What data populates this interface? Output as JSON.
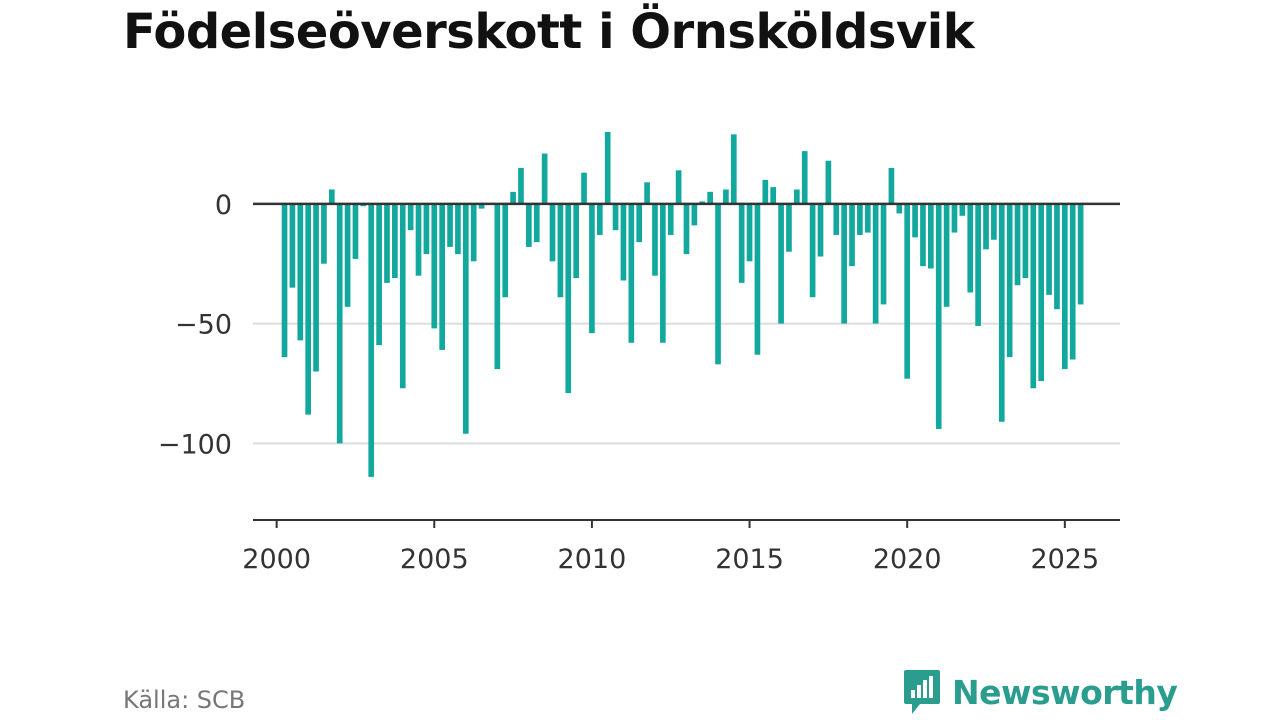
{
  "chart_data": {
    "type": "bar",
    "title": "Födelseöverskott i Örnsköldsvik",
    "xlabel": "",
    "ylabel": "",
    "x_start": 2000,
    "x_step_per_bar": 0.25,
    "first_bar_index": 1,
    "values": [
      -64,
      -35,
      -57,
      -88,
      -70,
      -25,
      6,
      -100,
      -43,
      -23,
      -1,
      -114,
      -59,
      -33,
      -31,
      -77,
      -11,
      -30,
      -21,
      -52,
      -61,
      -18,
      -21,
      -96,
      -24,
      -2,
      0,
      -69,
      -39,
      5,
      15,
      -18,
      -16,
      21,
      -24,
      -39,
      -79,
      -31,
      13,
      -54,
      -13,
      30,
      -11,
      -32,
      -58,
      -16,
      9,
      -30,
      -58,
      -13,
      14,
      -21,
      -9,
      1,
      5,
      -67,
      6,
      29,
      -33,
      -24,
      -63,
      10,
      7,
      -50,
      -20,
      6,
      22,
      -39,
      -22,
      18,
      -13,
      -50,
      -26,
      -13,
      -12,
      -50,
      -42,
      15,
      -4,
      -73,
      -14,
      -26,
      -27,
      -94,
      -43,
      -12,
      -5,
      -37,
      -51,
      -19,
      -15,
      -91,
      -64,
      -34,
      -31,
      -77,
      -74,
      -38,
      -44,
      -69,
      -65,
      -42
    ],
    "xlim": [
      1999.25,
      2026.75
    ],
    "ylim": [
      -132,
      35
    ],
    "yticks": [
      {
        "value": 0,
        "label": "0"
      },
      {
        "value": -50,
        "label": "−50"
      },
      {
        "value": -100,
        "label": "−100"
      }
    ],
    "xticks": [
      {
        "value": 2000,
        "label": "2000"
      },
      {
        "value": 2005,
        "label": "2005"
      },
      {
        "value": 2010,
        "label": "2010"
      },
      {
        "value": 2015,
        "label": "2015"
      },
      {
        "value": 2020,
        "label": "2020"
      },
      {
        "value": 2025,
        "label": "2025"
      }
    ],
    "grid": true,
    "bar_color": "#13a89e",
    "zero_line_color": "#333333",
    "grid_color": "#dddddd"
  },
  "source": "Källa: SCB",
  "brand": {
    "name": "Newsworthy",
    "icon": "newsworthy-logo-icon",
    "color": "#2a9d8f"
  }
}
